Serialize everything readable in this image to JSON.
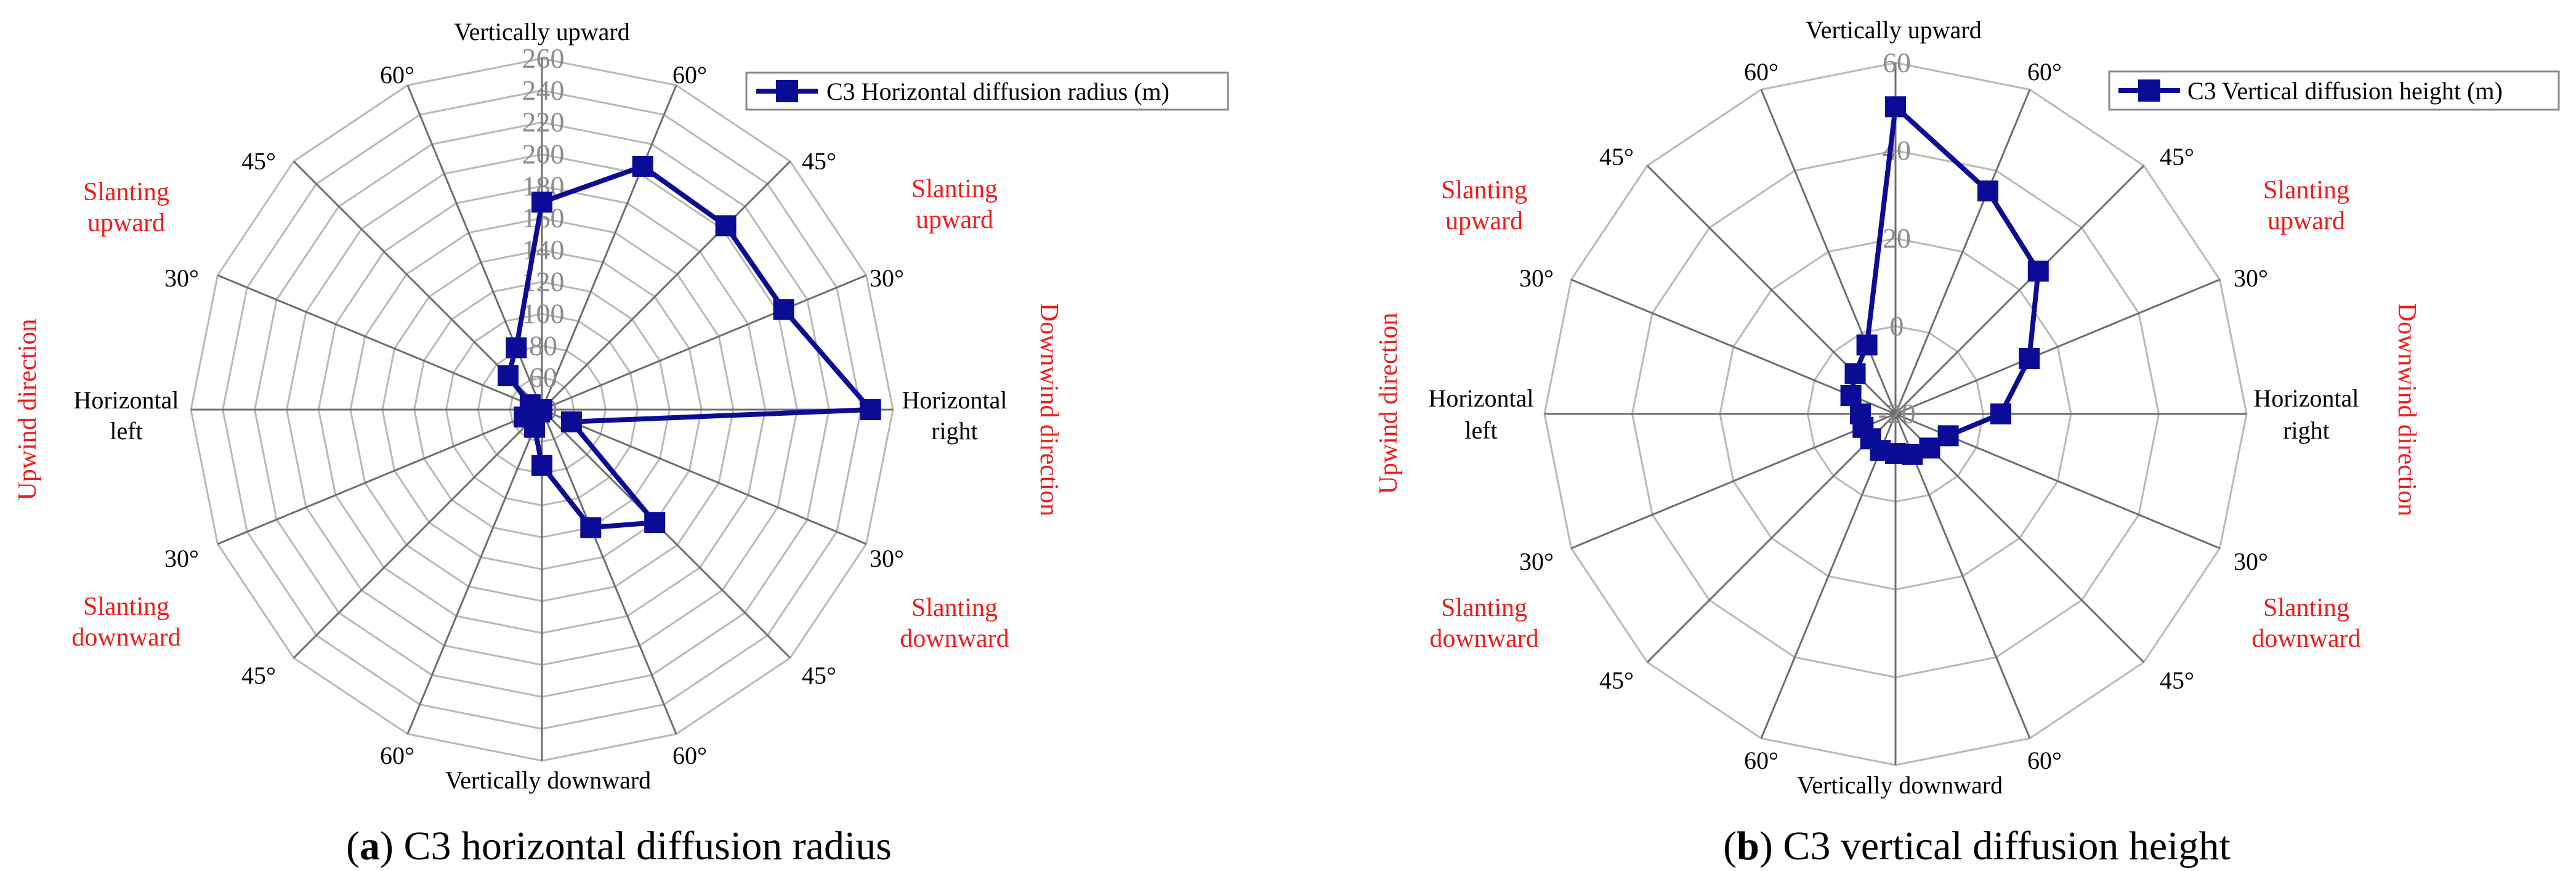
{
  "chart_data": [
    {
      "type": "radar",
      "panel_letter": "a",
      "caption_rest": " C3 horizontal diffusion radius",
      "legend": "C3 Horizontal diffusion radius (m)",
      "series": [
        {
          "name": "C3 Horizontal diffusion radius (m)",
          "color": "#0b0c96",
          "values": [
            170,
            205,
            203,
            204,
            246,
            60,
            140,
            120,
            75,
            52,
            42,
            52,
            40,
            48,
            70,
            82
          ]
        }
      ],
      "rlim": [
        40,
        260
      ],
      "radial_ticks": [
        "40",
        "60",
        "80",
        "100",
        "120",
        "140",
        "160",
        "180",
        "200",
        "220",
        "240",
        "260"
      ],
      "axis_labels": {
        "top": "Vertically upward",
        "bottom": "Vertically downward",
        "left_1": "Horizontal",
        "left_2": "left",
        "right_1": "Horizontal",
        "right_2": "right"
      },
      "angle_labels": [
        "60°",
        "45°",
        "30°",
        "30°",
        "45°",
        "60°",
        "60°",
        "45°",
        "30°",
        "30°",
        "45°",
        "60°"
      ],
      "region_labels": {
        "slant_up_1": "Slanting",
        "slant_up_2": "upward",
        "slant_down_1": "Slanting",
        "slant_down_2": "downward",
        "left_direction": "Upwind direction",
        "right_direction": "Downwind direction"
      }
    },
    {
      "type": "radar",
      "panel_letter": "b",
      "caption_rest": " C3 vertical diffusion height",
      "legend": "C3 Vertical diffusion height (m)",
      "series": [
        {
          "name": "C3 Vertical diffusion height (m)",
          "color": "#0b0c96",
          "values": [
            50,
            35,
            26,
            13,
            4,
            -7,
            -9,
            -10,
            -11,
            -11,
            -12,
            -12,
            -12,
            -9,
            -7,
            -3
          ]
        }
      ],
      "rlim": [
        -20,
        60
      ],
      "radial_ticks": [
        "-20",
        "0",
        "20",
        "40",
        "60"
      ],
      "axis_labels": {
        "top": "Vertically upward",
        "bottom": "Vertically downward",
        "left_1": "Horizontal",
        "left_2": "left",
        "right_1": "Horizontal",
        "right_2": "right"
      },
      "angle_labels": [
        "60°",
        "45°",
        "30°",
        "30°",
        "45°",
        "60°",
        "60°",
        "45°",
        "30°",
        "30°",
        "45°",
        "60°"
      ],
      "region_labels": {
        "slant_up_1": "Slanting",
        "slant_up_2": "upward",
        "slant_down_1": "Slanting",
        "slant_down_2": "downward",
        "left_direction": "Upwind direction",
        "right_direction": "Downwind direction"
      }
    }
  ]
}
